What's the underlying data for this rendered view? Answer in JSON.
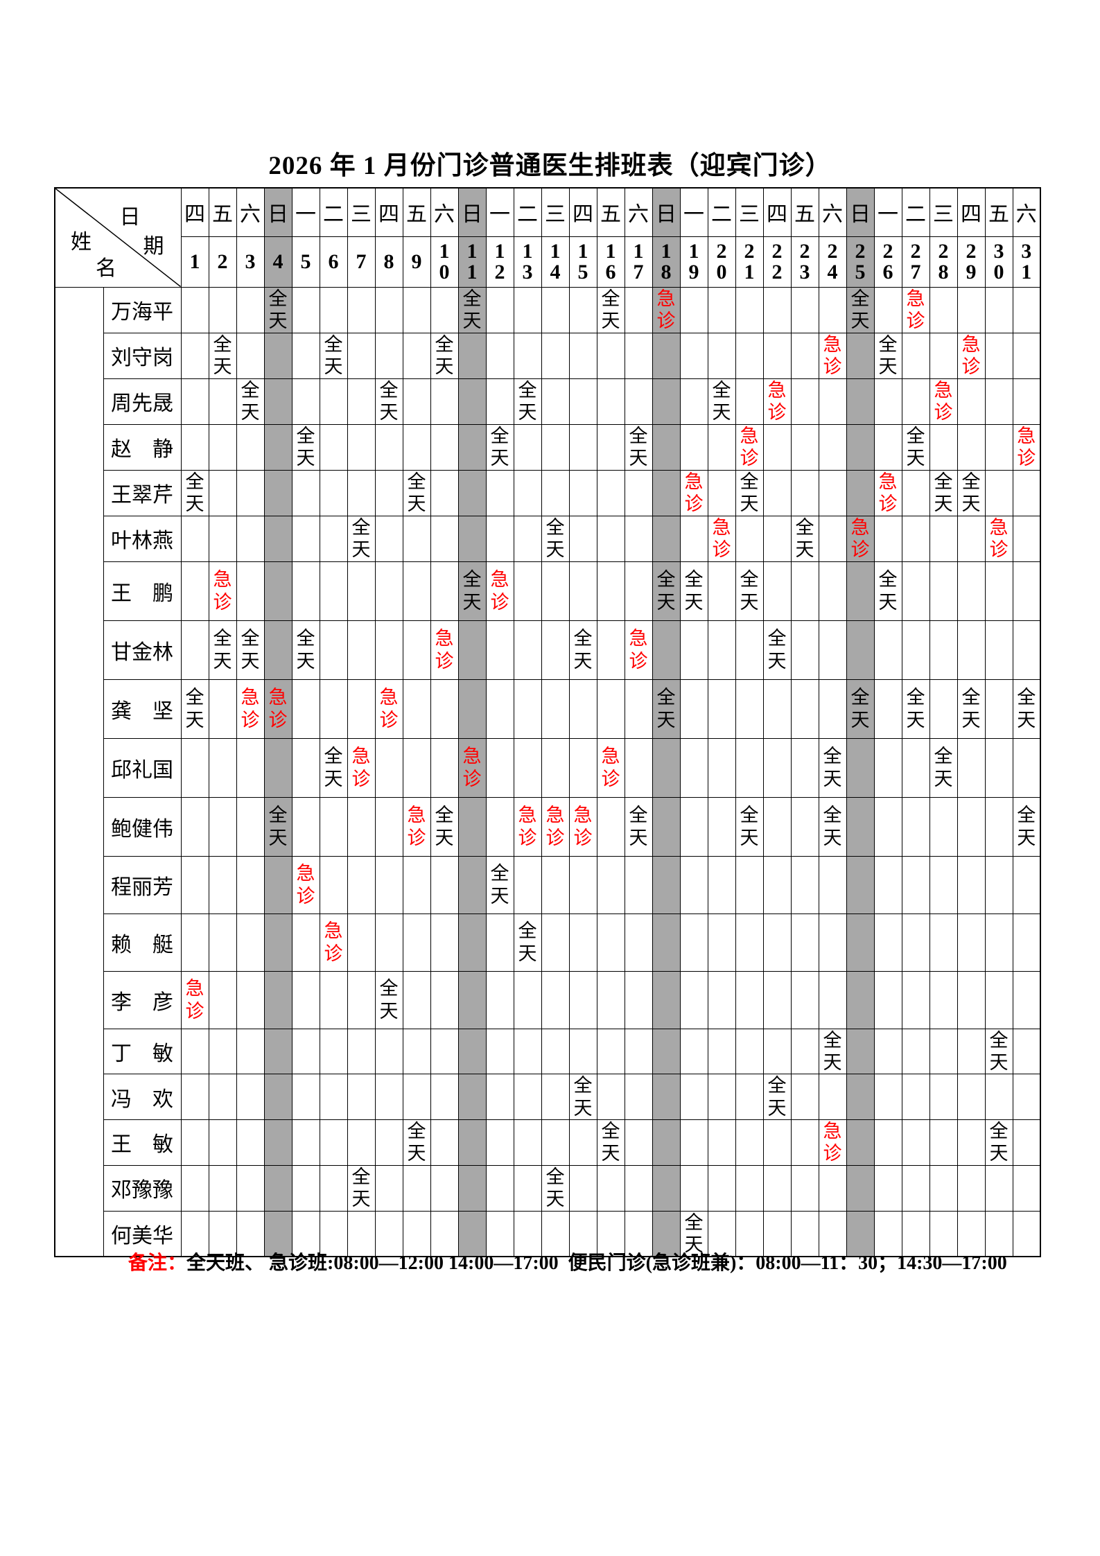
{
  "title": "2026 年 1 月份门诊普通医生排班表（迎宾门诊）",
  "header": {
    "corner_top": "日期",
    "corner_bottom": "姓名",
    "weekdays": [
      "四",
      "五",
      "六",
      "日",
      "一",
      "二",
      "三",
      "四",
      "五",
      "六",
      "日",
      "一",
      "二",
      "三",
      "四",
      "五",
      "六",
      "日",
      "一",
      "二",
      "三",
      "四",
      "五",
      "六",
      "日",
      "一",
      "二",
      "三",
      "四",
      "五",
      "六"
    ],
    "days": [
      1,
      2,
      3,
      4,
      5,
      6,
      7,
      8,
      9,
      10,
      11,
      12,
      13,
      14,
      15,
      16,
      17,
      18,
      19,
      20,
      21,
      22,
      23,
      24,
      25,
      26,
      27,
      28,
      29,
      30,
      31
    ],
    "sunday_days": [
      4,
      11,
      18,
      25
    ]
  },
  "legend": {
    "full": "全天",
    "emergency": "急诊"
  },
  "colors": {
    "emergency_red": "#ff0000",
    "sunday_gray": "#a8a8a8",
    "border": "#000000"
  },
  "doctors": [
    {
      "name": "万海平",
      "shifts": {
        "4": "full",
        "11": "full",
        "16": "full",
        "18": "emergency",
        "25": "full",
        "27": "emergency"
      }
    },
    {
      "name": "刘守岗",
      "shifts": {
        "2": "full",
        "6": "full",
        "10": "full",
        "24": "emergency",
        "26": "full",
        "29": "emergency"
      }
    },
    {
      "name": "周先晟",
      "shifts": {
        "3": "full",
        "8": "full",
        "13": "full",
        "20": "full",
        "22": "emergency",
        "28": "emergency"
      }
    },
    {
      "name": "赵　静",
      "shifts": {
        "5": "full",
        "12": "full",
        "17": "full",
        "21": "emergency",
        "27": "full",
        "31": "emergency"
      }
    },
    {
      "name": "王翠芹",
      "shifts": {
        "1": "full",
        "9": "full",
        "19": "emergency",
        "21": "full",
        "26": "emergency",
        "28": "full",
        "29": "full"
      }
    },
    {
      "name": "叶林燕",
      "shifts": {
        "7": "full",
        "14": "full",
        "20": "emergency",
        "23": "full",
        "25": "emergency",
        "30": "emergency"
      }
    },
    {
      "name": "王　鹏",
      "shifts": {
        "2": "emergency",
        "11": "full",
        "12": "emergency",
        "18": "full",
        "19": "full",
        "21": "full",
        "26": "full"
      }
    },
    {
      "name": "甘金林",
      "shifts": {
        "2": "full",
        "3": "full",
        "5": "full",
        "10": "emergency",
        "15": "full",
        "17": "emergency",
        "22": "full"
      }
    },
    {
      "name": "龚　坚",
      "shifts": {
        "1": "full",
        "3": "emergency",
        "4": "emergency",
        "8": "emergency",
        "18": "full",
        "25": "full",
        "27": "full",
        "29": "full",
        "31": "full"
      }
    },
    {
      "name": "邱礼国",
      "shifts": {
        "6": "full",
        "7": "emergency",
        "11": "emergency",
        "16": "emergency",
        "24": "full",
        "28": "full"
      }
    },
    {
      "name": "鲍健伟",
      "shifts": {
        "4": "full",
        "9": "emergency",
        "10": "full",
        "13": "emergency",
        "14": "emergency",
        "15": "emergency",
        "17": "full",
        "21": "full",
        "24": "full",
        "31": "full"
      }
    },
    {
      "name": "程丽芳",
      "shifts": {
        "5": "emergency",
        "12": "full"
      }
    },
    {
      "name": "赖　艇",
      "shifts": {
        "6": "emergency",
        "13": "full"
      }
    },
    {
      "name": "李　彦",
      "shifts": {
        "1": "emergency",
        "8": "full"
      }
    },
    {
      "name": "丁　敏",
      "shifts": {
        "24": "full",
        "30": "full"
      }
    },
    {
      "name": "冯　欢",
      "shifts": {
        "15": "full",
        "22": "full"
      }
    },
    {
      "name": "王　敏",
      "shifts": {
        "9": "full",
        "16": "full",
        "24": "emergency",
        "30": "full"
      }
    },
    {
      "name": "邓豫豫",
      "shifts": {
        "7": "full",
        "14": "full"
      }
    },
    {
      "name": "何美华",
      "shifts": {
        "19": "full"
      }
    }
  ],
  "footer": {
    "label": "备注：",
    "text": "全天班、 急诊班:08:00—12:00 14:00—17:00  便民门诊(急诊班兼)：08:00—11：30；14:30—17:00"
  }
}
